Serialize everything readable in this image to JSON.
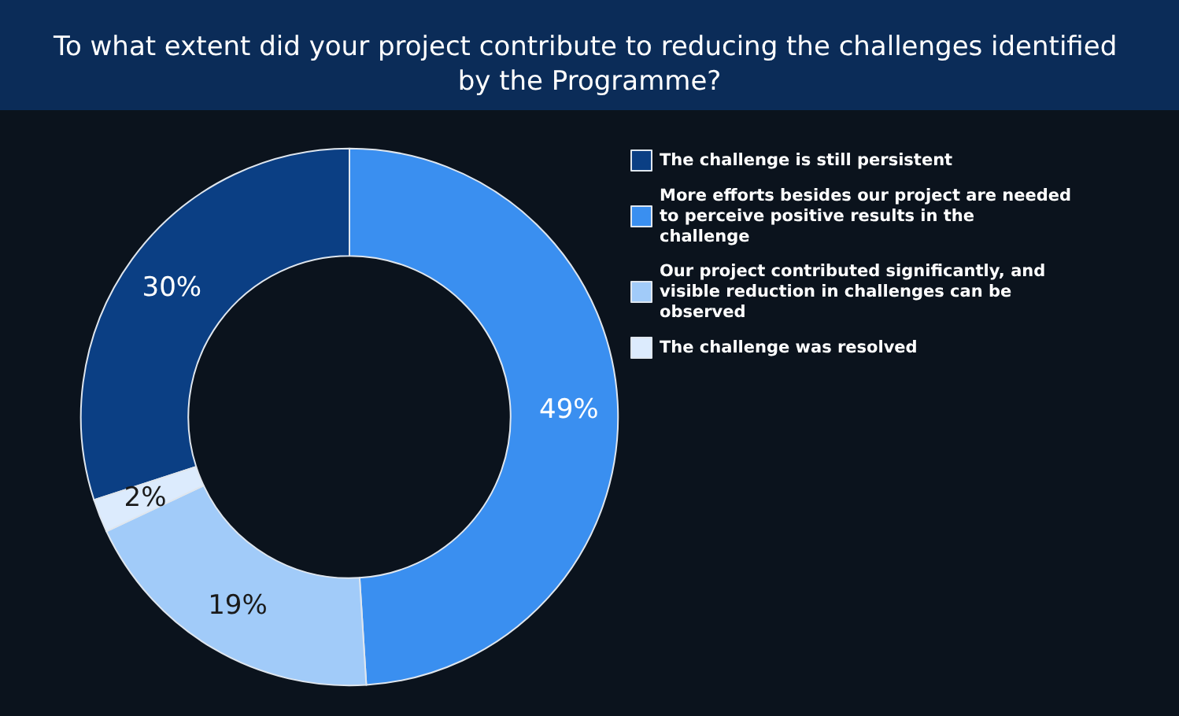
{
  "chart_data": {
    "type": "donut",
    "title": "To what extent did your project contribute to reducing the challenges identified by the Programme?",
    "categories": [
      "The challenge is still persistent",
      "More efforts besides our project are needed to perceive positive results in the challenge",
      "Our project contributed significantly, and visible reduction in challenges can be observed",
      "The challenge was resolved"
    ],
    "values": [
      30,
      49,
      19,
      2
    ],
    "colors": [
      "#0b3f84",
      "#3a8ff0",
      "#a1cbf9",
      "#dcebfd"
    ],
    "value_labels": [
      "30%",
      "49%",
      "19%",
      "2%"
    ],
    "legend": "top right"
  }
}
